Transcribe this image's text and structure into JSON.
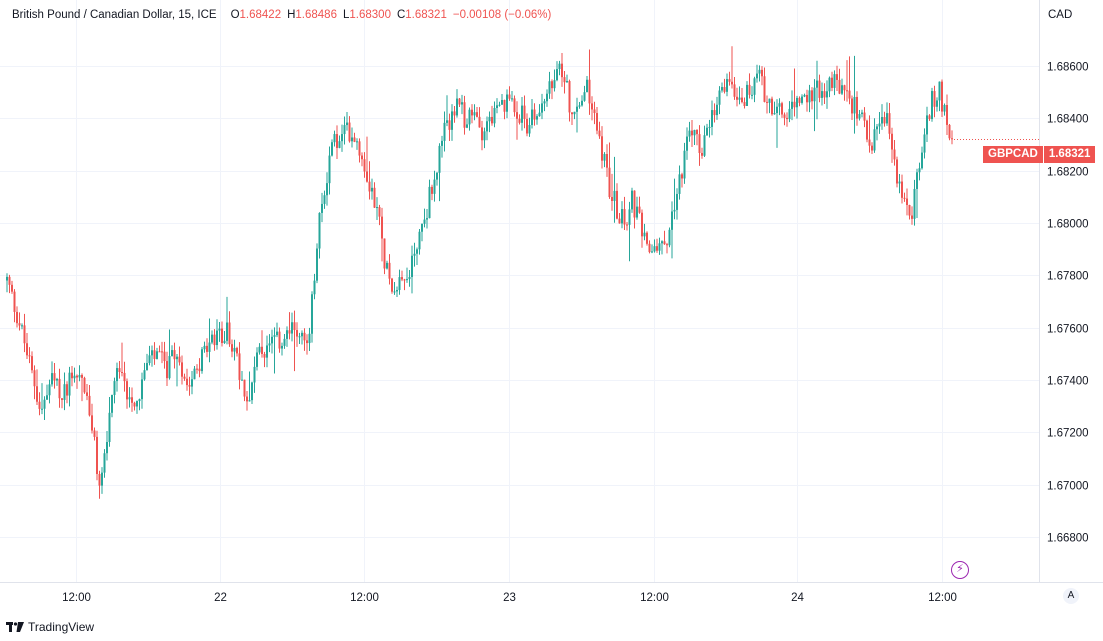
{
  "legend": {
    "symbol": "British Pound / Canadian Dollar, 15, ICE",
    "open_label": "O",
    "open": "1.68422",
    "high_label": "H",
    "high": "1.68486",
    "low_label": "L",
    "low": "1.68300",
    "close_label": "C",
    "close": "1.68321",
    "change": "−0.00108 (−0.06%)"
  },
  "currency": "CAD",
  "price_label": {
    "symbol": "GBPCAD",
    "value": "1.68321"
  },
  "brand": "TradingView",
  "auto_button": "A",
  "colors": {
    "up": "#26a69a",
    "down": "#ef5350",
    "grid": "#f0f3fa",
    "text": "#131722",
    "axis_border": "#e0e3eb"
  },
  "chart_data": {
    "type": "candlestick",
    "title": "British Pound / Canadian Dollar, 15, ICE",
    "ylim": [
      1.6672,
      1.6876
    ],
    "y_ticks": [
      "1.66800",
      "1.67000",
      "1.67200",
      "1.67400",
      "1.67600",
      "1.67800",
      "1.68000",
      "1.68200",
      "1.68400",
      "1.68600"
    ],
    "y_tick_values": [
      1.668,
      1.67,
      1.672,
      1.674,
      1.676,
      1.678,
      1.68,
      1.682,
      1.684,
      1.686
    ],
    "x_ticks": [
      "12:00",
      "22",
      "12:00",
      "23",
      "12:00",
      "24",
      "12:00"
    ],
    "last_price": 1.68321,
    "anchors": [
      [
        0,
        1.6778
      ],
      [
        5,
        1.6762
      ],
      [
        10,
        1.6742
      ],
      [
        14,
        1.6728
      ],
      [
        18,
        1.674
      ],
      [
        22,
        1.6733
      ],
      [
        26,
        1.6744
      ],
      [
        30,
        1.6741
      ],
      [
        34,
        1.6722
      ],
      [
        37,
        1.6698
      ],
      [
        40,
        1.6718
      ],
      [
        44,
        1.6742
      ],
      [
        48,
        1.6736
      ],
      [
        52,
        1.6732
      ],
      [
        56,
        1.6746
      ],
      [
        60,
        1.6749
      ],
      [
        64,
        1.6744
      ],
      [
        68,
        1.675
      ],
      [
        72,
        1.674
      ],
      [
        76,
        1.6746
      ],
      [
        80,
        1.6752
      ],
      [
        84,
        1.6756
      ],
      [
        88,
        1.6759
      ],
      [
        92,
        1.6748
      ],
      [
        96,
        1.6733
      ],
      [
        100,
        1.6748
      ],
      [
        104,
        1.6752
      ],
      [
        108,
        1.6754
      ],
      [
        112,
        1.6757
      ],
      [
        116,
        1.676
      ],
      [
        120,
        1.6752
      ],
      [
        121,
        1.6758
      ],
      [
        123,
        1.678
      ],
      [
        125,
        1.68
      ],
      [
        127,
        1.6812
      ],
      [
        130,
        1.6832
      ],
      [
        133,
        1.683
      ],
      [
        136,
        1.6836
      ],
      [
        139,
        1.6834
      ],
      [
        142,
        1.6826
      ],
      [
        145,
        1.6816
      ],
      [
        148,
        1.6806
      ],
      [
        151,
        1.6786
      ],
      [
        154,
        1.6776
      ],
      [
        157,
        1.678
      ],
      [
        160,
        1.6778
      ],
      [
        163,
        1.679
      ],
      [
        166,
        1.6798
      ],
      [
        169,
        1.681
      ],
      [
        172,
        1.6822
      ],
      [
        175,
        1.6834
      ],
      [
        178,
        1.6842
      ],
      [
        181,
        1.6844
      ],
      [
        184,
        1.6838
      ],
      [
        187,
        1.6841
      ],
      [
        190,
        1.6836
      ],
      [
        193,
        1.684
      ],
      [
        196,
        1.6842
      ],
      [
        199,
        1.6844
      ],
      [
        202,
        1.6848
      ],
      [
        205,
        1.6842
      ],
      [
        208,
        1.6838
      ],
      [
        211,
        1.684
      ],
      [
        214,
        1.6846
      ],
      [
        217,
        1.685
      ],
      [
        220,
        1.6856
      ],
      [
        223,
        1.6858
      ],
      [
        226,
        1.684
      ],
      [
        229,
        1.6844
      ],
      [
        232,
        1.6852
      ],
      [
        235,
        1.684
      ],
      [
        238,
        1.6828
      ],
      [
        241,
        1.6814
      ],
      [
        244,
        1.6806
      ],
      [
        247,
        1.68
      ],
      [
        250,
        1.6808
      ],
      [
        253,
        1.68
      ],
      [
        256,
        1.6788
      ],
      [
        259,
        1.6792
      ],
      [
        262,
        1.679
      ],
      [
        265,
        1.6798
      ],
      [
        268,
        1.6812
      ],
      [
        271,
        1.6826
      ],
      [
        274,
        1.6836
      ],
      [
        277,
        1.6828
      ],
      [
        280,
        1.6832
      ],
      [
        283,
        1.6842
      ],
      [
        286,
        1.685
      ],
      [
        289,
        1.6856
      ],
      [
        292,
        1.685
      ],
      [
        295,
        1.6848
      ],
      [
        298,
        1.6852
      ],
      [
        301,
        1.6855
      ],
      [
        304,
        1.6848
      ],
      [
        307,
        1.6844
      ],
      [
        310,
        1.684
      ],
      [
        313,
        1.6842
      ],
      [
        316,
        1.6846
      ],
      [
        319,
        1.6846
      ],
      [
        322,
        1.685
      ],
      [
        325,
        1.6852
      ],
      [
        328,
        1.685
      ],
      [
        331,
        1.6854
      ],
      [
        334,
        1.685
      ],
      [
        337,
        1.6846
      ],
      [
        340,
        1.6844
      ],
      [
        343,
        1.6836
      ],
      [
        346,
        1.6832
      ],
      [
        349,
        1.6836
      ],
      [
        352,
        1.6838
      ],
      [
        355,
        1.6822
      ],
      [
        358,
        1.681
      ],
      [
        361,
        1.68
      ],
      [
        364,
        1.6816
      ],
      [
        367,
        1.6834
      ],
      [
        370,
        1.6846
      ],
      [
        373,
        1.685
      ],
      [
        376,
        1.684
      ],
      [
        378,
        1.6832
      ]
    ]
  }
}
